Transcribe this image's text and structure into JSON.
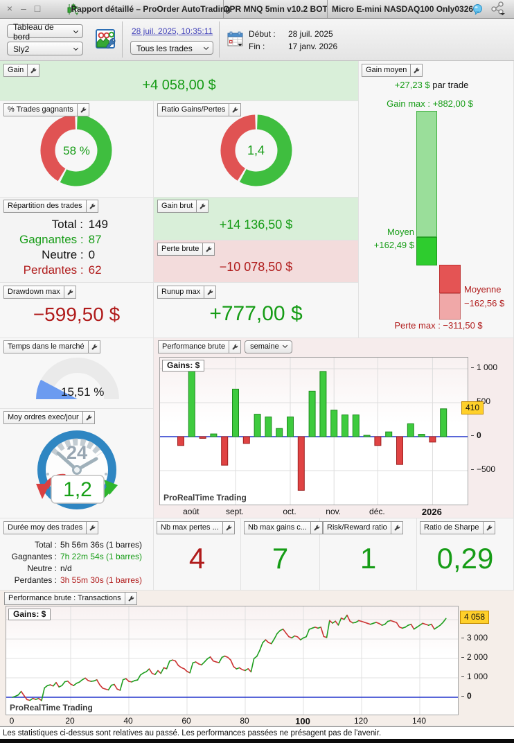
{
  "window": {
    "close": "×",
    "minimize": "–",
    "maximize": "□",
    "title": "Rapport détaillé – ProOrder AutoTrading",
    "system_tab": "OPR MNQ 5min v10.2 BOT",
    "instrument_tab": "Micro E-mini NASDAQ100 Only0326"
  },
  "toolbar": {
    "view_select": "Tableau de bord",
    "strategy_select": "Sly2",
    "report_timestamp_link": "28 juil. 2025, 10:35:11",
    "trades_filter_select": "Tous les trades",
    "debut_label": "Début :",
    "debut_value": "28 juil. 2025",
    "fin_label": "Fin :",
    "fin_value": "17 janv. 2026"
  },
  "panels": {
    "gain": {
      "label": "Gain",
      "value": "+4 058,00 $"
    },
    "gain_moyen": {
      "label": "Gain moyen",
      "per_trade_value": "+27,23 $",
      "per_trade_suffix": " par trade",
      "gain_max_text": "Gain max : +882,00 $",
      "moyen_label": "Moyen",
      "moyen_value": "+162,49 $",
      "moyenne_label": "Moyenne",
      "moyenne_value": "−162,56 $",
      "perte_max_text": "Perte max : −311,50 $",
      "numbers": {
        "gain_max": 882.0,
        "moyen": 162.49,
        "moyenne": -162.56,
        "perte_max": -311.5
      }
    },
    "pct_gagnants": {
      "label": "% Trades gagnants",
      "value": "58 %",
      "fraction": 0.58
    },
    "ratio_gains_pertes": {
      "label": "Ratio Gains/Pertes",
      "value": "1,4",
      "fraction": 0.583
    },
    "repartition": {
      "label": "Répartition des trades",
      "rows": [
        {
          "k": "Total :",
          "v": "149",
          "cls": "blk"
        },
        {
          "k": "Gagnantes :",
          "v": "87",
          "cls": "green"
        },
        {
          "k": "Neutre :",
          "v": "0",
          "cls": "blk"
        },
        {
          "k": "Perdantes :",
          "v": "62",
          "cls": "red"
        }
      ]
    },
    "gain_brut": {
      "label": "Gain brut",
      "value": "+14 136,50 $"
    },
    "perte_brute": {
      "label": "Perte brute",
      "value": "−10 078,50 $"
    },
    "drawdown_max": {
      "label": "Drawdown max",
      "value": "−599,50 $"
    },
    "runup_max": {
      "label": "Runup max",
      "value": "+777,00 $"
    },
    "temps_marche": {
      "label": "Temps dans le marché",
      "value": "15,51 %",
      "fraction": 0.1551
    },
    "moy_ordres": {
      "label": "Moy ordres exec/jour",
      "value": "1,2",
      "dial_text": "24"
    },
    "perf_semaine": {
      "label": "Performance brute",
      "period_select": "semaine"
    },
    "duree": {
      "label": "Durée moy des trades",
      "rows": [
        {
          "k": "Total :",
          "v": "5h 56m 36s (1 barres)",
          "cls": "blk"
        },
        {
          "k": "Gagnantes :",
          "v": "7h 22m 54s (1 barres)",
          "cls": "green"
        },
        {
          "k": "Neutre :",
          "v": "n/d",
          "cls": "blk"
        },
        {
          "k": "Perdantes :",
          "v": "3h 55m 30s (1 barres)",
          "cls": "red"
        }
      ]
    },
    "nb_max_pertes": {
      "label": "Nb max pertes ...",
      "value": "4"
    },
    "nb_max_gains": {
      "label": "Nb max gains c...",
      "value": "7"
    },
    "risk_reward": {
      "label": "Risk/Reward ratio",
      "value": "1"
    },
    "sharpe": {
      "label": "Ratio de Sharpe",
      "value": "0,29"
    },
    "perf_transactions": {
      "label": "Performance brute : Transactions"
    }
  },
  "disclaimer": "Les statistiques ci-dessus sont relatives au passé. Les performances passées ne présagent pas de l'avenir.",
  "colors": {
    "positive": "#169c16",
    "negative": "#b01b1b",
    "gain_bg": "#d9efd9",
    "loss_bg": "#f3dcdc",
    "bar_green": "#3ecb3e",
    "bar_green_border": "#1d8a1d",
    "bar_red": "#e04343",
    "bar_red_border": "#9c1f1f",
    "donut_green": "#3fbe3f",
    "donut_red": "#e05353",
    "gauge_blue": "#6b9bf0",
    "zero_line": "#2233cc",
    "badge_bg": "#ffd02a",
    "up_line": "#1e9e1e",
    "down_line": "#cc3333"
  },
  "chart_data": [
    {
      "type": "bar",
      "title": "Gains: $",
      "period": "semaine",
      "watermark": "ProRealTime Trading",
      "values": [
        -130,
        970,
        -25,
        40,
        -420,
        700,
        -100,
        330,
        290,
        120,
        290,
        -790,
        670,
        960,
        390,
        320,
        320,
        20,
        -130,
        70,
        -410,
        190,
        35,
        -80,
        410
      ],
      "month_ticks": [
        {
          "label": "août",
          "index": 1
        },
        {
          "label": "sept.",
          "index": 5
        },
        {
          "label": "oct.",
          "index": 10
        },
        {
          "label": "nov.",
          "index": 14
        },
        {
          "label": "déc.",
          "index": 18
        },
        {
          "label": "2026",
          "index": 23,
          "bold": true
        }
      ],
      "y_ticks": [
        {
          "label": "1 000",
          "value": 1000
        },
        {
          "label": "500",
          "value": 500
        },
        {
          "label": "0",
          "value": 0,
          "bold": true
        },
        {
          "label": "−500",
          "value": -500
        }
      ],
      "ylim": [
        -1020,
        1150
      ],
      "last_value_badge": {
        "label": "410",
        "value": 410
      }
    },
    {
      "type": "line",
      "title": "Gains: $",
      "watermark": "ProRealTime Trading",
      "xlabel_ticks": [
        {
          "label": "0",
          "value": 0
        },
        {
          "label": "20",
          "value": 20
        },
        {
          "label": "40",
          "value": 40
        },
        {
          "label": "60",
          "value": 60
        },
        {
          "label": "80",
          "value": 80
        },
        {
          "label": "100",
          "value": 100,
          "bold": true
        },
        {
          "label": "120",
          "value": 120
        },
        {
          "label": "140",
          "value": 140
        }
      ],
      "y_ticks": [
        {
          "label": "3 000",
          "value": 3000
        },
        {
          "label": "2 000",
          "value": 2000
        },
        {
          "label": "1 000",
          "value": 1000
        },
        {
          "label": "0",
          "value": 0,
          "bold": true
        }
      ],
      "final_badge": {
        "label": "4 058",
        "value": 4058
      },
      "ylim": [
        -900,
        4650
      ],
      "points": [
        [
          0,
          0
        ],
        [
          1,
          50
        ],
        [
          2,
          120
        ],
        [
          3,
          300
        ],
        [
          4,
          80
        ],
        [
          5,
          -120
        ],
        [
          6,
          -160
        ],
        [
          7,
          -60
        ],
        [
          8,
          -110
        ],
        [
          9,
          -60
        ],
        [
          10,
          -170
        ],
        [
          11,
          480
        ],
        [
          12,
          600
        ],
        [
          13,
          640
        ],
        [
          14,
          580
        ],
        [
          15,
          760
        ],
        [
          16,
          530
        ],
        [
          17,
          600
        ],
        [
          18,
          800
        ],
        [
          19,
          830
        ],
        [
          20,
          680
        ],
        [
          21,
          600
        ],
        [
          22,
          720
        ],
        [
          23,
          780
        ],
        [
          24,
          900
        ],
        [
          25,
          990
        ],
        [
          26,
          860
        ],
        [
          27,
          820
        ],
        [
          28,
          840
        ],
        [
          29,
          900
        ],
        [
          30,
          640
        ],
        [
          31,
          470
        ],
        [
          32,
          420
        ],
        [
          33,
          380
        ],
        [
          34,
          620
        ],
        [
          35,
          660
        ],
        [
          36,
          420
        ],
        [
          37,
          360
        ],
        [
          38,
          900
        ],
        [
          39,
          960
        ],
        [
          40,
          820
        ],
        [
          41,
          790
        ],
        [
          42,
          860
        ],
        [
          43,
          890
        ],
        [
          44,
          1150
        ],
        [
          45,
          1250
        ],
        [
          46,
          1320
        ],
        [
          47,
          1460
        ],
        [
          48,
          1230
        ],
        [
          49,
          1170
        ],
        [
          50,
          1370
        ],
        [
          51,
          1230
        ],
        [
          52,
          1520
        ],
        [
          53,
          1470
        ],
        [
          54,
          1860
        ],
        [
          55,
          1920
        ],
        [
          56,
          1870
        ],
        [
          57,
          1640
        ],
        [
          58,
          1530
        ],
        [
          59,
          1470
        ],
        [
          60,
          1330
        ],
        [
          61,
          1260
        ],
        [
          62,
          1770
        ],
        [
          63,
          1820
        ],
        [
          64,
          1720
        ],
        [
          65,
          1670
        ],
        [
          66,
          1820
        ],
        [
          67,
          1980
        ],
        [
          68,
          2080
        ],
        [
          69,
          1870
        ],
        [
          70,
          1820
        ],
        [
          71,
          1780
        ],
        [
          72,
          2060
        ],
        [
          73,
          2120
        ],
        [
          74,
          2060
        ],
        [
          75,
          1920
        ],
        [
          76,
          1580
        ],
        [
          77,
          1460
        ],
        [
          78,
          1520
        ],
        [
          79,
          1420
        ],
        [
          80,
          1380
        ],
        [
          81,
          1470
        ],
        [
          82,
          1310
        ],
        [
          83,
          1990
        ],
        [
          84,
          2110
        ],
        [
          85,
          2420
        ],
        [
          86,
          2810
        ],
        [
          87,
          2960
        ],
        [
          88,
          2820
        ],
        [
          89,
          2760
        ],
        [
          90,
          3010
        ],
        [
          91,
          3290
        ],
        [
          92,
          3440
        ],
        [
          93,
          3510
        ],
        [
          94,
          3310
        ],
        [
          95,
          3120
        ],
        [
          96,
          3060
        ],
        [
          97,
          3160
        ],
        [
          98,
          3110
        ],
        [
          99,
          2960
        ],
        [
          100,
          3060
        ],
        [
          101,
          3120
        ],
        [
          102,
          3500
        ],
        [
          103,
          3560
        ],
        [
          104,
          3610
        ],
        [
          105,
          3560
        ],
        [
          106,
          3610
        ],
        [
          107,
          3130
        ],
        [
          108,
          3080
        ],
        [
          109,
          3950
        ],
        [
          110,
          3820
        ],
        [
          111,
          3920
        ],
        [
          112,
          3720
        ],
        [
          113,
          4080
        ],
        [
          114,
          4010
        ],
        [
          115,
          4230
        ],
        [
          116,
          3920
        ],
        [
          117,
          3830
        ],
        [
          118,
          3860
        ],
        [
          119,
          3950
        ],
        [
          120,
          3910
        ],
        [
          121,
          3860
        ],
        [
          122,
          3810
        ],
        [
          123,
          3760
        ],
        [
          124,
          3810
        ],
        [
          125,
          3860
        ],
        [
          126,
          3800
        ],
        [
          127,
          3710
        ],
        [
          128,
          3760
        ],
        [
          129,
          3910
        ],
        [
          130,
          3950
        ],
        [
          131,
          3900
        ],
        [
          132,
          3850
        ],
        [
          133,
          3620
        ],
        [
          134,
          3560
        ],
        [
          135,
          3610
        ],
        [
          136,
          3710
        ],
        [
          137,
          3760
        ],
        [
          138,
          3510
        ],
        [
          139,
          3610
        ],
        [
          140,
          3710
        ],
        [
          141,
          3810
        ],
        [
          142,
          3760
        ],
        [
          143,
          3710
        ],
        [
          144,
          3760
        ],
        [
          145,
          3510
        ],
        [
          146,
          3610
        ],
        [
          147,
          3710
        ],
        [
          148,
          3860
        ],
        [
          149,
          4058
        ]
      ]
    }
  ]
}
